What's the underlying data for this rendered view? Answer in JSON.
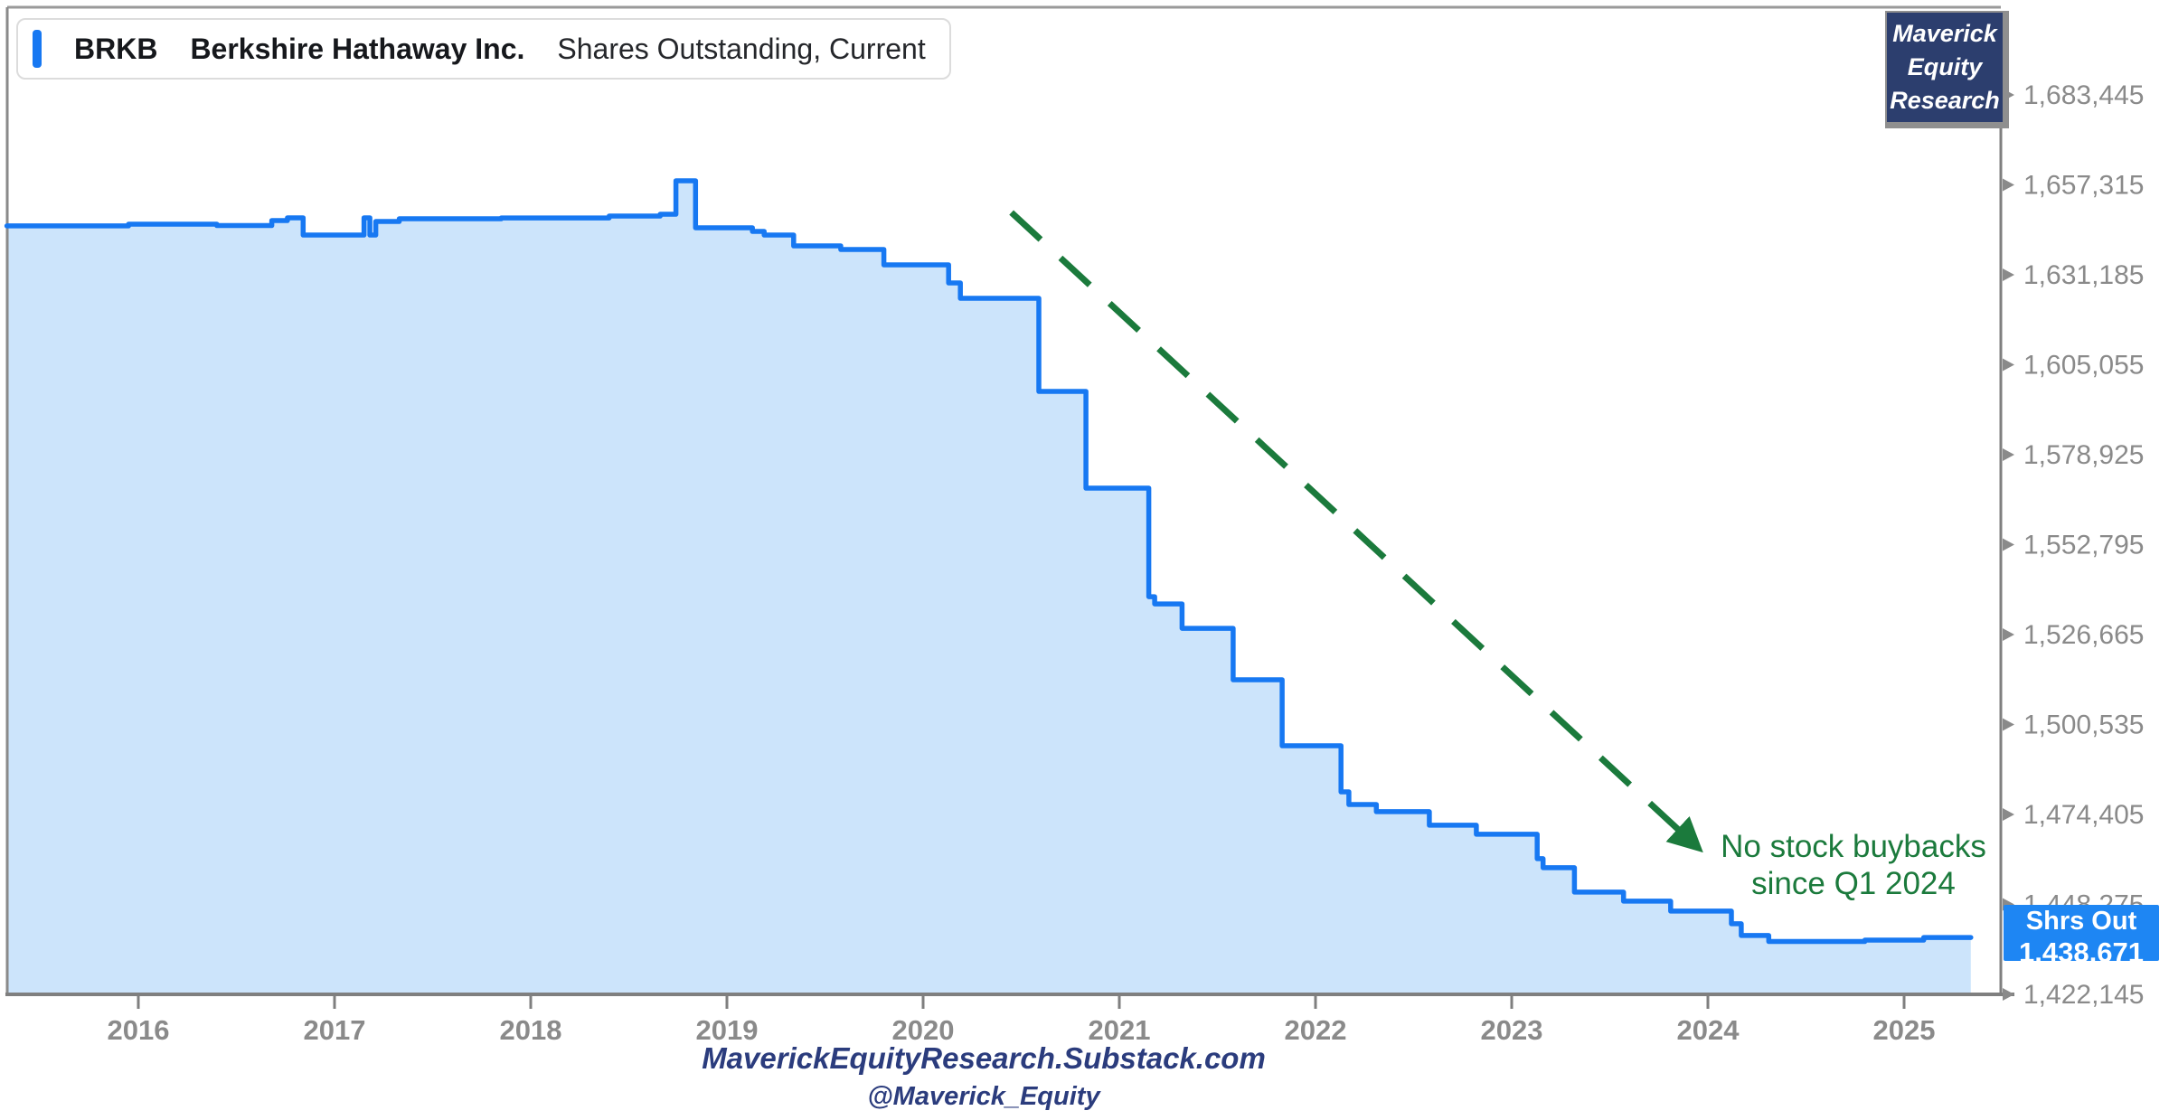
{
  "legend": {
    "ticker": "BRKB",
    "company": "Berkshire Hathaway Inc.",
    "metric": "Shares Outstanding, Current"
  },
  "badge": {
    "lines": [
      "Maverick",
      "Equity",
      "Research"
    ]
  },
  "annotation": {
    "line1": "No stock buybacks",
    "line2": "since Q1 2024"
  },
  "last_label": {
    "title": "Shrs Out",
    "value": "1,438,671"
  },
  "footer": {
    "site": "MaverickEquityResearch.Substack.com",
    "handle": "@Maverick_Equity"
  },
  "colors": {
    "line": "#1778F2",
    "fill": "#CCE4FB",
    "axis": "#7f7f7f",
    "tick_text": "#8a8a8a",
    "green": "#1B7A3C",
    "navy_badge": "#2C3E6E",
    "footer_navy": "#2B3C7D",
    "price_badge": "#1E86F3"
  },
  "chart_data": {
    "type": "area",
    "step": true,
    "title": "BRKB Berkshire Hathaway Inc. Shares Outstanding, Current",
    "legend_position": "top-left",
    "grid": false,
    "x_ticks": [
      2016,
      2017,
      2018,
      2019,
      2020,
      2021,
      2022,
      2023,
      2024,
      2025
    ],
    "y_ticks": [
      1683445,
      1657315,
      1631185,
      1605055,
      1578925,
      1552795,
      1526665,
      1500535,
      1474405,
      1448275,
      1422145
    ],
    "xlim": [
      2015.33,
      2025.34
    ],
    "ylim": [
      1422145,
      1683445
    ],
    "current_value": 1438671,
    "series": [
      {
        "name": "Shares Outstanding",
        "end_year": 2025.34,
        "points": [
          [
            2015.33,
            1645400
          ],
          [
            2015.95,
            1645900
          ],
          [
            2016.4,
            1645500
          ],
          [
            2016.68,
            1646950
          ],
          [
            2016.76,
            1647730
          ],
          [
            2016.84,
            1642740
          ],
          [
            2017.15,
            1647730
          ],
          [
            2017.18,
            1642740
          ],
          [
            2017.21,
            1646690
          ],
          [
            2017.33,
            1647480
          ],
          [
            2017.85,
            1647700
          ],
          [
            2018.4,
            1648260
          ],
          [
            2018.66,
            1648780
          ],
          [
            2018.74,
            1658500
          ],
          [
            2018.84,
            1644850
          ],
          [
            2019.13,
            1643790
          ],
          [
            2019.19,
            1642740
          ],
          [
            2019.34,
            1639590
          ],
          [
            2019.58,
            1638540
          ],
          [
            2019.8,
            1634080
          ],
          [
            2020.13,
            1628830
          ],
          [
            2020.19,
            1624360
          ],
          [
            2020.59,
            1597310
          ],
          [
            2020.83,
            1569220
          ],
          [
            2021.15,
            1537680
          ],
          [
            2021.18,
            1535580
          ],
          [
            2021.32,
            1528490
          ],
          [
            2021.58,
            1513530
          ],
          [
            2021.83,
            1494360
          ],
          [
            2022.13,
            1480980
          ],
          [
            2022.17,
            1477300
          ],
          [
            2022.31,
            1475230
          ],
          [
            2022.58,
            1471290
          ],
          [
            2022.82,
            1468660
          ],
          [
            2023.13,
            1461570
          ],
          [
            2023.16,
            1458940
          ],
          [
            2023.32,
            1451850
          ],
          [
            2023.57,
            1449220
          ],
          [
            2023.81,
            1446330
          ],
          [
            2024.12,
            1442650
          ],
          [
            2024.17,
            1439240
          ],
          [
            2024.31,
            1437500
          ],
          [
            2024.8,
            1437900
          ],
          [
            2025.1,
            1438671
          ]
        ]
      }
    ],
    "annotation_arrow": {
      "from": [
        2020.45,
        1649300
      ],
      "to": [
        2023.95,
        1464700
      ]
    }
  }
}
